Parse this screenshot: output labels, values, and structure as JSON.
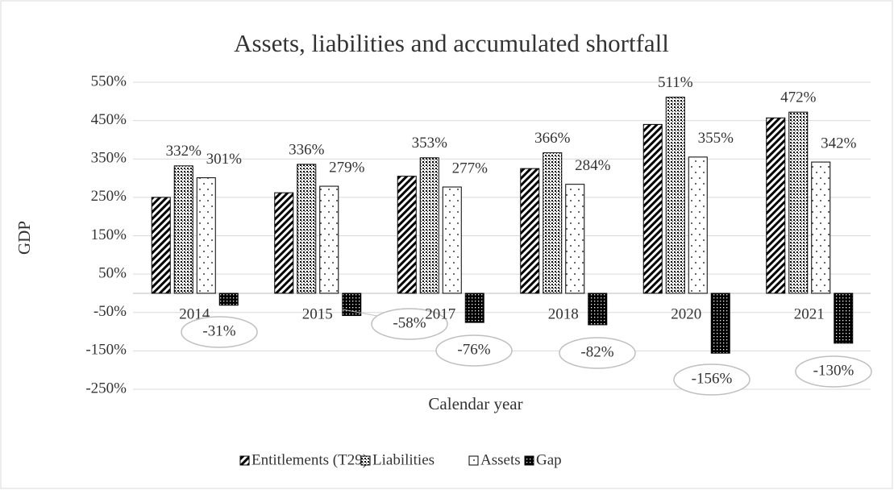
{
  "chart_data": {
    "type": "bar",
    "title": "Assets, liabilities and accumulated shortfall",
    "xlabel": "Calendar year",
    "ylabel": "GDP",
    "categories": [
      "2014",
      "2015",
      "2017",
      "2018",
      "2020",
      "2021"
    ],
    "series": [
      {
        "name": "Entitlements (T29)",
        "color": "#000000",
        "pattern": "diagonal",
        "values": [
          250,
          262,
          305,
          325,
          440,
          457
        ]
      },
      {
        "name": "Liabilities",
        "color": "#000000",
        "pattern": "dense-dots",
        "values": [
          332,
          336,
          353,
          366,
          511,
          472
        ],
        "value_labels": [
          "332%",
          "336%",
          "353%",
          "366%",
          "511%",
          "472%"
        ]
      },
      {
        "name": "Assets",
        "color": "#000000",
        "pattern": "sparse-dots",
        "values": [
          301,
          279,
          277,
          284,
          355,
          342
        ],
        "value_labels": [
          "301%",
          "279%",
          "277%",
          "284%",
          "355%",
          "342%"
        ]
      },
      {
        "name": "Gap",
        "color": "#000000",
        "pattern": "dark-check",
        "values": [
          -31,
          -58,
          -76,
          -82,
          -156,
          -130
        ],
        "value_labels": [
          "-31%",
          "-58%",
          "-76%",
          "-82%",
          "-156%",
          "-130%"
        ]
      }
    ],
    "ylim": [
      -250,
      550
    ],
    "yticks": [
      {
        "value": 550,
        "label": "550%"
      },
      {
        "value": 450,
        "label": "450%"
      },
      {
        "value": 350,
        "label": "350%"
      },
      {
        "value": 250,
        "label": "250%"
      },
      {
        "value": 150,
        "label": "150%"
      },
      {
        "value": 50,
        "label": "50%"
      },
      {
        "value": -50,
        "label": "-50%"
      },
      {
        "value": -150,
        "label": "-150%"
      },
      {
        "value": -250,
        "label": "-250%"
      }
    ],
    "grid": true,
    "legend": "bottom"
  }
}
